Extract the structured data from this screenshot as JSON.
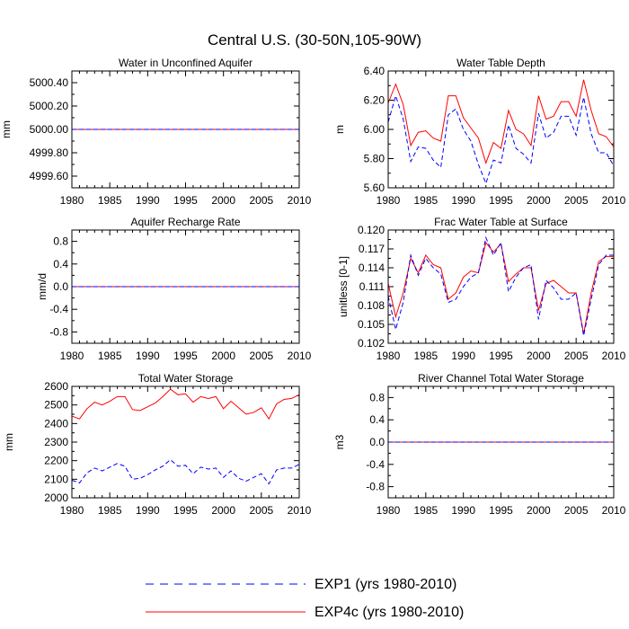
{
  "figure_title": "Central U.S. (30-50N,105-90W)",
  "colors": {
    "exp1": "#0000ff",
    "exp4c": "#ff0000",
    "axis": "#000000"
  },
  "legend": {
    "exp1": "EXP1 (yrs 1980-2010)",
    "exp4c": "EXP4c (yrs 1980-2010)"
  },
  "chart_data": [
    {
      "type": "line",
      "title": "Water in Unconfined Aquifer",
      "ylabel": "mm",
      "xlim": [
        1980,
        2010
      ],
      "ylim": [
        4999.5,
        5000.5
      ],
      "yticks": [
        4999.6,
        4999.8,
        5000.0,
        5000.2,
        5000.4
      ],
      "ytick_labels": [
        "4999.60",
        "4999.80",
        "5000.00",
        "5000.20",
        "5000.40"
      ],
      "x": [
        1980,
        2010
      ],
      "series": [
        {
          "name": "EXP1",
          "values": [
            5000.0,
            5000.0
          ]
        },
        {
          "name": "EXP4c",
          "values": [
            5000.0,
            5000.0
          ]
        }
      ]
    },
    {
      "type": "line",
      "title": "Water Table Depth",
      "ylabel": "m",
      "xlim": [
        1980,
        2010
      ],
      "ylim": [
        5.6,
        6.4
      ],
      "yticks": [
        5.6,
        5.8,
        6.0,
        6.2,
        6.4
      ],
      "ytick_labels": [
        "5.60",
        "5.80",
        "6.00",
        "6.20",
        "6.40"
      ],
      "x": [
        1980,
        1981,
        1982,
        1983,
        1984,
        1985,
        1986,
        1987,
        1988,
        1989,
        1990,
        1991,
        1992,
        1993,
        1994,
        1995,
        1996,
        1997,
        1998,
        1999,
        2000,
        2001,
        2002,
        2003,
        2004,
        2005,
        2006,
        2007,
        2008,
        2009,
        2010
      ],
      "series": [
        {
          "name": "EXP1",
          "values": [
            6.05,
            6.23,
            6.07,
            5.78,
            5.88,
            5.87,
            5.79,
            5.74,
            6.1,
            6.14,
            6.0,
            5.92,
            5.76,
            5.63,
            5.79,
            5.77,
            6.03,
            5.87,
            5.83,
            5.77,
            6.11,
            5.94,
            5.98,
            6.09,
            6.09,
            5.96,
            6.22,
            5.97,
            5.84,
            5.84,
            5.75
          ]
        },
        {
          "name": "EXP4c",
          "values": [
            6.18,
            6.31,
            6.17,
            5.89,
            5.98,
            5.99,
            5.94,
            5.92,
            6.23,
            6.23,
            6.08,
            6.01,
            5.94,
            5.77,
            5.91,
            5.87,
            6.13,
            6.0,
            5.97,
            5.89,
            6.23,
            6.07,
            6.09,
            6.19,
            6.19,
            6.09,
            6.34,
            6.13,
            5.97,
            5.95,
            5.88
          ]
        }
      ]
    },
    {
      "type": "line",
      "title": "Aquifer Recharge Rate",
      "ylabel": "mm/d",
      "xlim": [
        1980,
        2010
      ],
      "ylim": [
        -1.0,
        1.0
      ],
      "yticks": [
        -0.8,
        -0.4,
        0.0,
        0.4,
        0.8
      ],
      "ytick_labels": [
        "-0.8",
        "-0.4",
        "0.0",
        "0.4",
        "0.8"
      ],
      "x": [
        1980,
        2010
      ],
      "series": [
        {
          "name": "EXP1",
          "values": [
            0.0,
            0.0
          ]
        },
        {
          "name": "EXP4c",
          "values": [
            0.0,
            0.0
          ]
        }
      ]
    },
    {
      "type": "line",
      "title": "Frac Water Table at Surface",
      "ylabel": "unitless [0-1]",
      "xlim": [
        1980,
        2010
      ],
      "ylim": [
        0.102,
        0.12
      ],
      "yticks": [
        0.102,
        0.105,
        0.108,
        0.111,
        0.114,
        0.117,
        0.12
      ],
      "ytick_labels": [
        "0.102",
        "0.105",
        "0.108",
        "0.111",
        "0.114",
        "0.117",
        "0.120"
      ],
      "x": [
        1980,
        1981,
        1982,
        1983,
        1984,
        1985,
        1986,
        1987,
        1988,
        1989,
        1990,
        1991,
        1992,
        1993,
        1994,
        1995,
        1996,
        1997,
        1998,
        1999,
        2000,
        2001,
        2002,
        2003,
        2004,
        2005,
        2006,
        2007,
        2008,
        2009,
        2010
      ],
      "series": [
        {
          "name": "EXP1",
          "values": [
            0.1095,
            0.1042,
            0.1085,
            0.116,
            0.1128,
            0.1155,
            0.114,
            0.113,
            0.1085,
            0.109,
            0.111,
            0.1125,
            0.1132,
            0.1188,
            0.116,
            0.118,
            0.1102,
            0.1125,
            0.114,
            0.1145,
            0.1058,
            0.112,
            0.1108,
            0.109,
            0.109,
            0.11,
            0.1032,
            0.109,
            0.1145,
            0.116,
            0.116
          ]
        },
        {
          "name": "EXP4c",
          "values": [
            0.1115,
            0.1062,
            0.11,
            0.1155,
            0.1132,
            0.116,
            0.1145,
            0.114,
            0.109,
            0.11,
            0.1125,
            0.1135,
            0.1132,
            0.118,
            0.1165,
            0.1178,
            0.1118,
            0.113,
            0.114,
            0.114,
            0.1072,
            0.1115,
            0.112,
            0.111,
            0.11,
            0.11,
            0.1035,
            0.11,
            0.115,
            0.1158,
            0.1158
          ]
        }
      ]
    },
    {
      "type": "line",
      "title": "Total Water Storage",
      "ylabel": "mm",
      "xlim": [
        1980,
        2010
      ],
      "ylim": [
        2000,
        2600
      ],
      "yticks": [
        2000,
        2100,
        2200,
        2300,
        2400,
        2500,
        2600
      ],
      "ytick_labels": [
        "2000",
        "2100",
        "2200",
        "2300",
        "2400",
        "2500",
        "2600"
      ],
      "x": [
        1980,
        1981,
        1982,
        1983,
        1984,
        1985,
        1986,
        1987,
        1988,
        1989,
        1990,
        1991,
        1992,
        1993,
        1994,
        1995,
        1996,
        1997,
        1998,
        1999,
        2000,
        2001,
        2002,
        2003,
        2004,
        2005,
        2006,
        2007,
        2008,
        2009,
        2010
      ],
      "series": [
        {
          "name": "EXP1",
          "values": [
            2095,
            2080,
            2135,
            2160,
            2145,
            2165,
            2185,
            2170,
            2100,
            2105,
            2125,
            2150,
            2170,
            2205,
            2170,
            2175,
            2130,
            2165,
            2155,
            2160,
            2110,
            2145,
            2105,
            2090,
            2110,
            2130,
            2075,
            2150,
            2160,
            2160,
            2180
          ]
        },
        {
          "name": "EXP4c",
          "values": [
            2440,
            2425,
            2480,
            2515,
            2500,
            2520,
            2545,
            2545,
            2475,
            2470,
            2490,
            2510,
            2545,
            2585,
            2555,
            2560,
            2515,
            2545,
            2535,
            2545,
            2480,
            2520,
            2485,
            2450,
            2460,
            2485,
            2425,
            2505,
            2530,
            2535,
            2555
          ]
        }
      ]
    },
    {
      "type": "line",
      "title": "River Channel Total Water Storage",
      "ylabel": "m3",
      "xlim": [
        1980,
        2010
      ],
      "ylim": [
        -1.0,
        1.0
      ],
      "yticks": [
        -0.8,
        -0.4,
        0.0,
        0.4,
        0.8
      ],
      "ytick_labels": [
        "-0.8",
        "-0.4",
        "0.0",
        "0.4",
        "0.8"
      ],
      "x": [
        1980,
        2010
      ],
      "series": [
        {
          "name": "EXP1",
          "values": [
            0.0,
            0.0
          ]
        },
        {
          "name": "EXP4c",
          "values": [
            0.0,
            0.0
          ]
        }
      ]
    }
  ],
  "xticks": [
    1980,
    1985,
    1990,
    1995,
    2000,
    2005,
    2010
  ]
}
